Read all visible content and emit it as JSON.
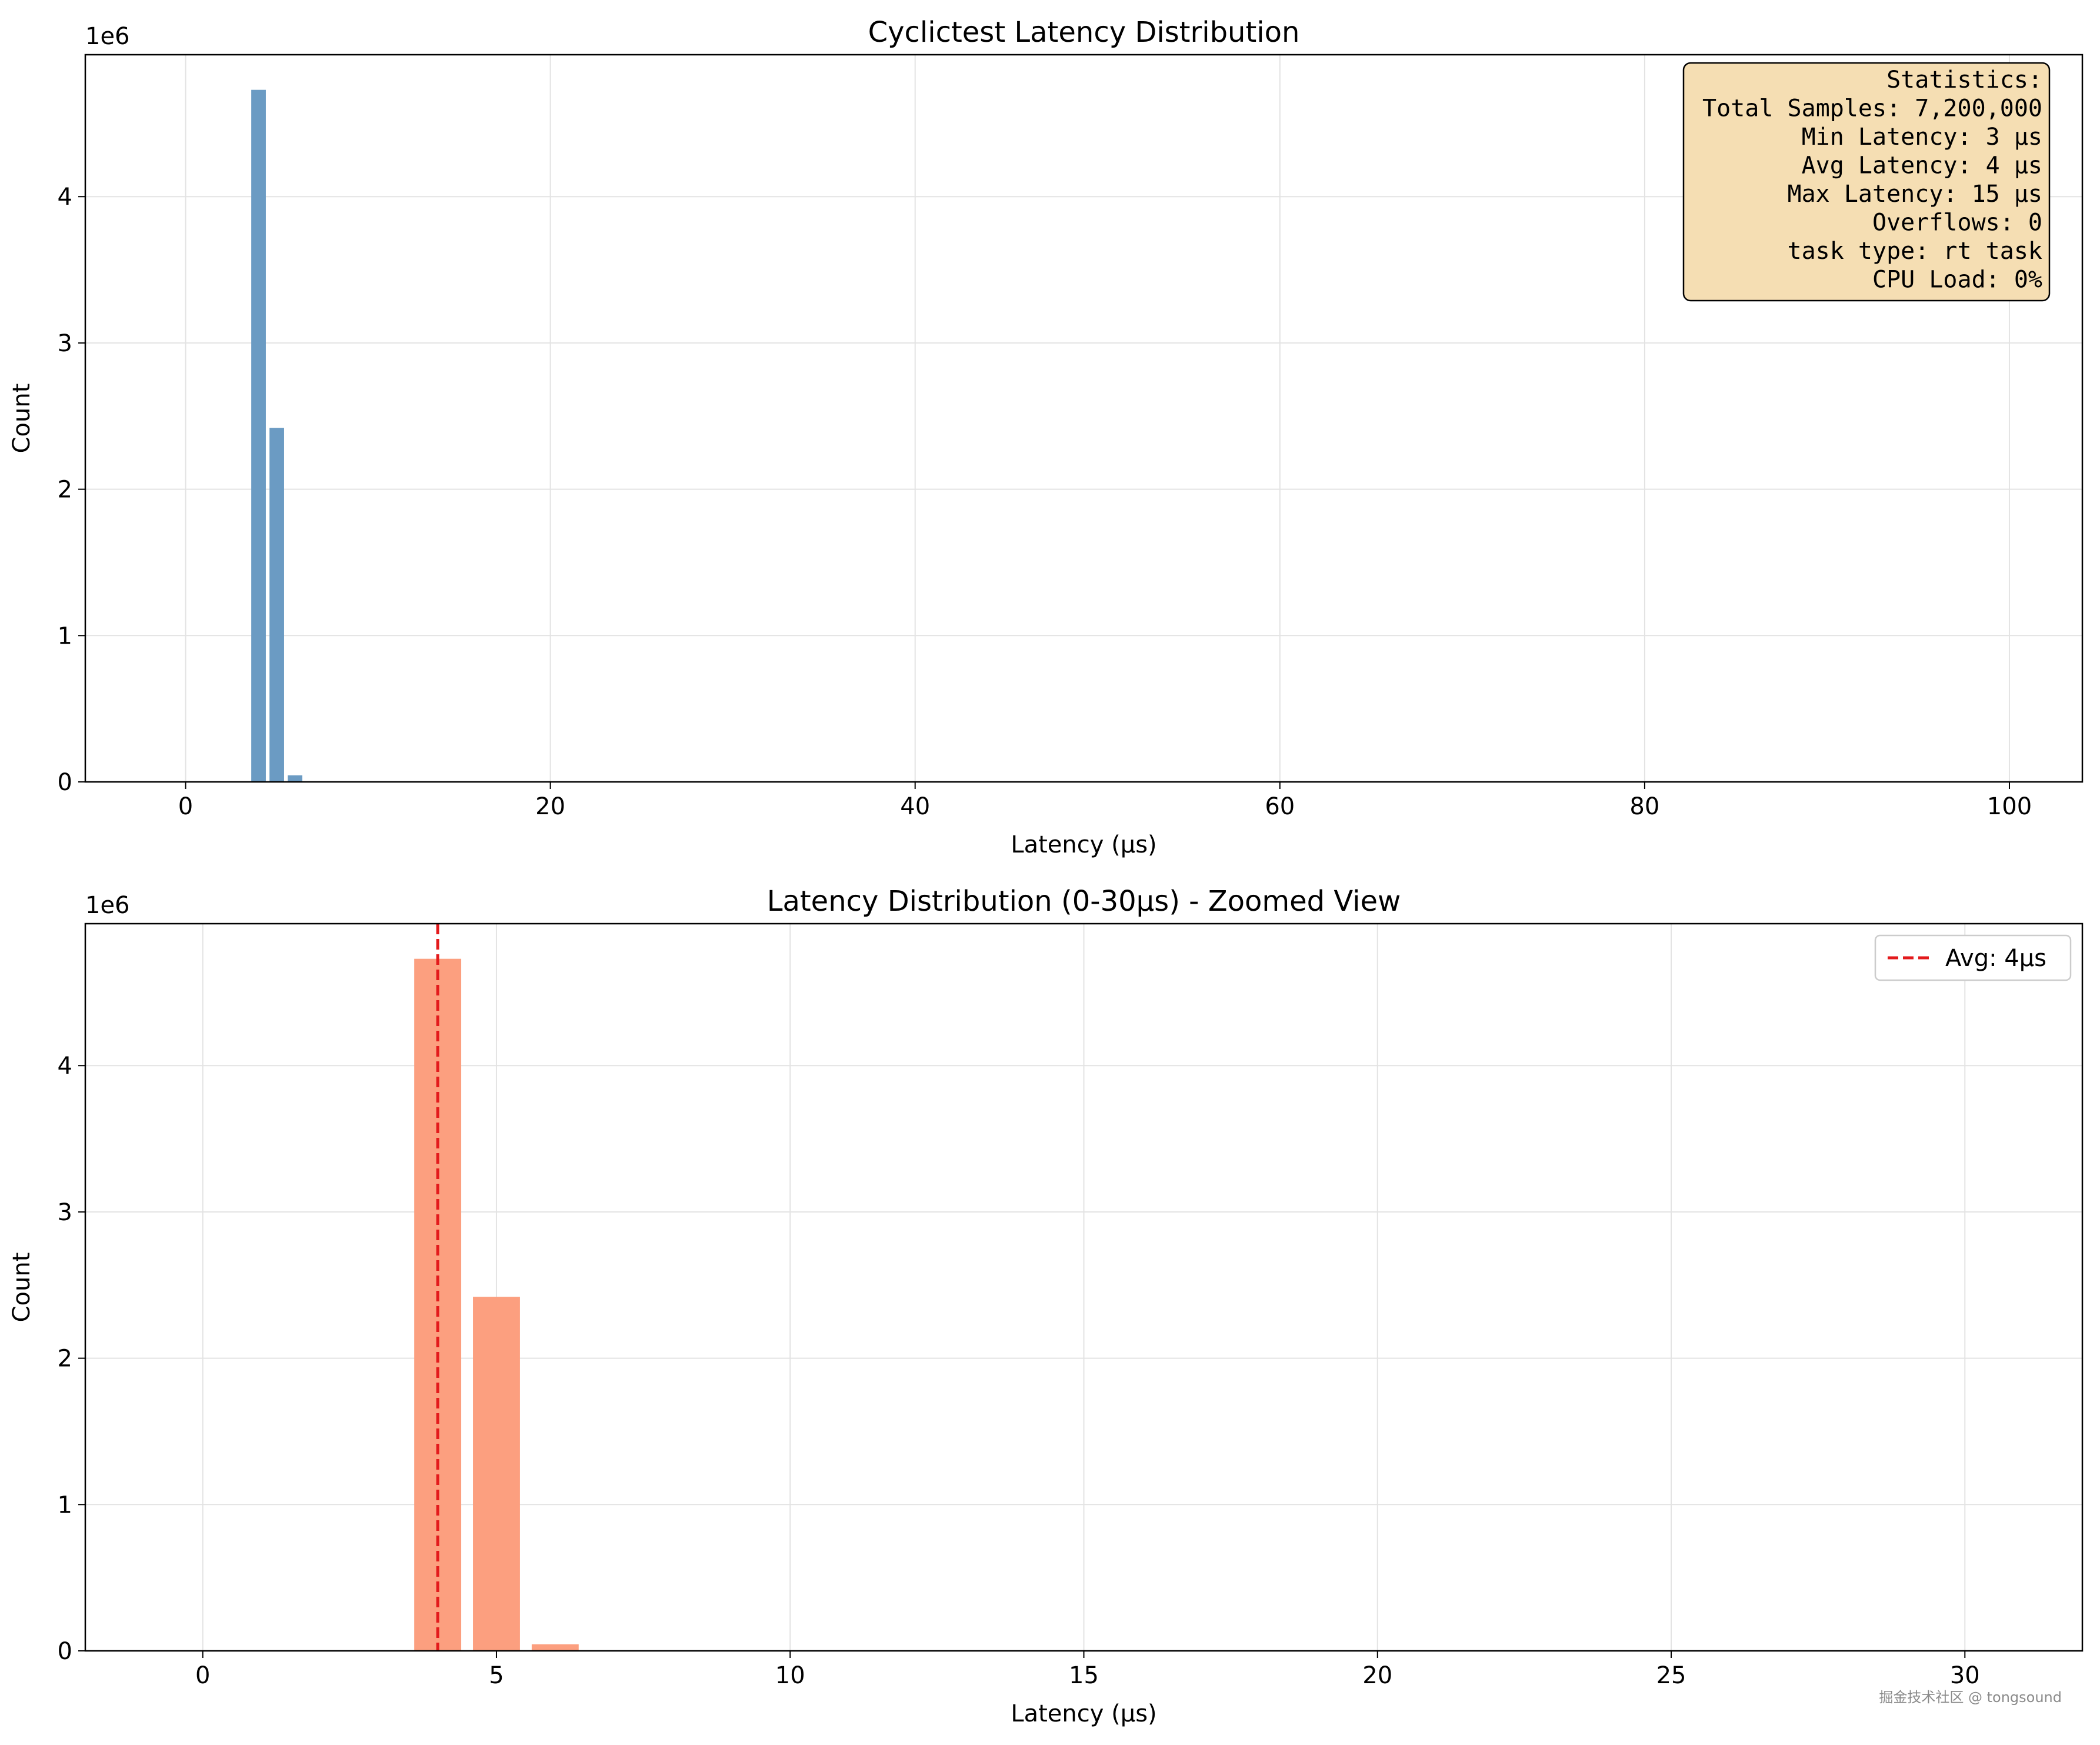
{
  "chart_data": [
    {
      "type": "bar",
      "title": "Cyclictest Latency Distribution",
      "xlabel": "Latency (µs)",
      "ylabel": "Count",
      "offset_label": "1e6",
      "xlim": [
        -5.5,
        104
      ],
      "ylim": [
        0,
        4.97
      ],
      "xticks": [
        0,
        20,
        40,
        60,
        80,
        100
      ],
      "yticks": [
        0,
        1,
        2,
        3,
        4
      ],
      "grid": true,
      "bar_width": 0.8,
      "bar_color": "#6b9bc3",
      "bars": [
        {
          "x": 4,
          "value": 4.73
        },
        {
          "x": 5,
          "value": 2.42
        },
        {
          "x": 6,
          "value": 0.045
        }
      ],
      "stats_box": {
        "placement": "top-right",
        "background": "#f5deb3",
        "lines": [
          "Statistics:",
          "Total Samples: 7,200,000",
          "Min Latency: 3 µs",
          "Avg Latency: 4 µs",
          "Max Latency: 15 µs",
          "Overflows: 0",
          "task type: rt task",
          "CPU Load: 0%"
        ]
      }
    },
    {
      "type": "bar",
      "title": "Latency Distribution (0-30µs) - Zoomed View",
      "xlabel": "Latency (µs)",
      "ylabel": "Count",
      "offset_label": "1e6",
      "xlim": [
        -2,
        32
      ],
      "ylim": [
        0,
        4.97
      ],
      "xticks": [
        0,
        5,
        10,
        15,
        20,
        25,
        30
      ],
      "yticks": [
        0,
        1,
        2,
        3,
        4
      ],
      "grid": true,
      "bar_width": 0.8,
      "bar_color": "#fc9f7f",
      "bars": [
        {
          "x": 4,
          "value": 4.73
        },
        {
          "x": 5,
          "value": 2.42
        },
        {
          "x": 6,
          "value": 0.045
        }
      ],
      "avg_line": {
        "x": 4,
        "color": "#e31a1c",
        "style": "dashed"
      },
      "legend": {
        "placement": "top-right",
        "label": "Avg: 4µs"
      }
    }
  ],
  "watermark": "掘金技术社区 @ tongsound"
}
